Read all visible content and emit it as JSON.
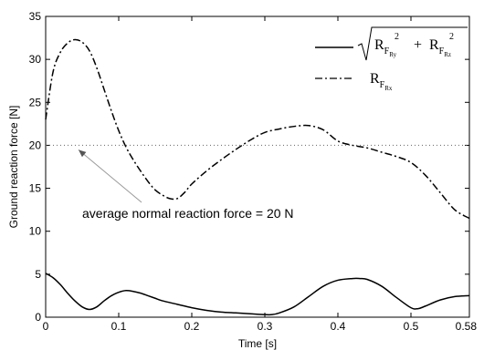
{
  "chart_data": {
    "type": "line",
    "xlabel": "Time [s]",
    "ylabel": "Ground reaction force [N]",
    "xlim": [
      0,
      0.58
    ],
    "ylim": [
      0,
      35
    ],
    "x_ticks": [
      "0",
      "0.1",
      "0.2",
      "0.3",
      "0.4",
      "0.5",
      "0.58"
    ],
    "y_ticks": [
      "0",
      "5",
      "10",
      "15",
      "20",
      "25",
      "30",
      "35"
    ],
    "legend_position": "top-right",
    "series": [
      {
        "legend": {
          "base": "R",
          "sub1": "F",
          "sub2": "Rx"
        },
        "style": "dash-dot",
        "x": [
          0,
          0.01,
          0.02,
          0.03,
          0.04,
          0.05,
          0.06,
          0.07,
          0.08,
          0.09,
          0.1,
          0.11,
          0.12,
          0.13,
          0.14,
          0.15,
          0.16,
          0.17,
          0.18,
          0.19,
          0.2,
          0.22,
          0.24,
          0.26,
          0.28,
          0.3,
          0.32,
          0.34,
          0.36,
          0.38,
          0.4,
          0.42,
          0.44,
          0.46,
          0.48,
          0.5,
          0.52,
          0.54,
          0.56,
          0.58
        ],
        "y": [
          23.0,
          28.5,
          30.8,
          31.9,
          32.3,
          32.0,
          31.0,
          29.0,
          26.5,
          24.0,
          21.7,
          19.8,
          18.3,
          17.0,
          15.8,
          14.8,
          14.2,
          13.8,
          13.8,
          14.5,
          15.5,
          17.0,
          18.3,
          19.5,
          20.6,
          21.5,
          21.9,
          22.2,
          22.3,
          21.8,
          20.5,
          20.0,
          19.7,
          19.2,
          18.7,
          18.0,
          16.5,
          14.5,
          12.5,
          11.5
        ]
      },
      {
        "legend": {
          "root_a": "R",
          "sub_a1": "F",
          "sub_a2": "Ry",
          "root_b": "R",
          "sub_b1": "F",
          "sub_b2": "Rz",
          "sup": "2",
          "plus": "+"
        },
        "style": "solid",
        "x": [
          0,
          0.01,
          0.02,
          0.03,
          0.04,
          0.05,
          0.06,
          0.07,
          0.08,
          0.09,
          0.1,
          0.11,
          0.12,
          0.13,
          0.14,
          0.15,
          0.16,
          0.18,
          0.2,
          0.22,
          0.24,
          0.26,
          0.28,
          0.3,
          0.31,
          0.32,
          0.34,
          0.36,
          0.38,
          0.4,
          0.42,
          0.43,
          0.44,
          0.46,
          0.48,
          0.5,
          0.51,
          0.52,
          0.54,
          0.56,
          0.58
        ],
        "y": [
          5.1,
          4.6,
          3.8,
          2.8,
          1.9,
          1.2,
          0.9,
          1.2,
          1.9,
          2.5,
          2.9,
          3.1,
          3.0,
          2.8,
          2.5,
          2.2,
          1.9,
          1.5,
          1.1,
          0.8,
          0.6,
          0.5,
          0.4,
          0.3,
          0.3,
          0.5,
          1.2,
          2.4,
          3.6,
          4.3,
          4.5,
          4.5,
          4.4,
          3.6,
          2.3,
          1.1,
          1.0,
          1.3,
          2.0,
          2.4,
          2.5
        ]
      }
    ],
    "reference_line": {
      "y": 20,
      "style": "dotted"
    },
    "annotation": {
      "text": "average normal reaction force = 20 N",
      "arrow_target": {
        "x": 0.04,
        "y": 20
      }
    }
  }
}
